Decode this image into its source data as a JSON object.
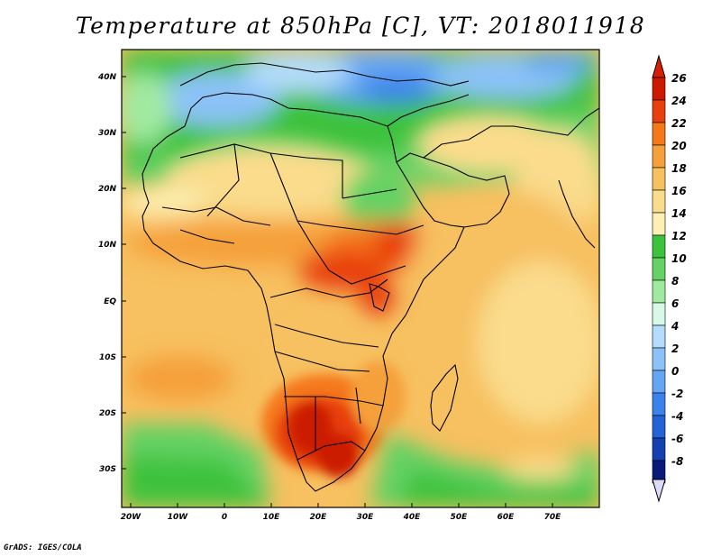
{
  "title": "Temperature at 850hPa [C], VT: 2018011918",
  "credit": "GrADS: IGES/COLA",
  "map": {
    "lat_labels": [
      "40N",
      "30N",
      "20N",
      "10N",
      "EQ",
      "10S",
      "20S",
      "30S"
    ],
    "lon_labels": [
      "20W",
      "10W",
      "0",
      "10E",
      "20E",
      "30E",
      "40E",
      "50E",
      "60E",
      "70E"
    ]
  },
  "colorbar": {
    "labels": [
      "26",
      "24",
      "22",
      "20",
      "18",
      "16",
      "14",
      "12",
      "10",
      "8",
      "6",
      "4",
      "2",
      "0",
      "-2",
      "-4",
      "-6",
      "-8"
    ],
    "colors": [
      "#cc1a00",
      "#e8400d",
      "#f5781a",
      "#f5a03a",
      "#f7c060",
      "#fadc8c",
      "#fcf0b4",
      "#3cc23c",
      "#64d264",
      "#a0eaa0",
      "#d8f8e8",
      "#b4dcfc",
      "#8cc2f8",
      "#64a6f4",
      "#3c82ec",
      "#2462d8",
      "#1440b0",
      "#0a1a78"
    ],
    "tip_top_color": "#d81e05",
    "tip_bottom_color": "#dcdcfa"
  }
}
